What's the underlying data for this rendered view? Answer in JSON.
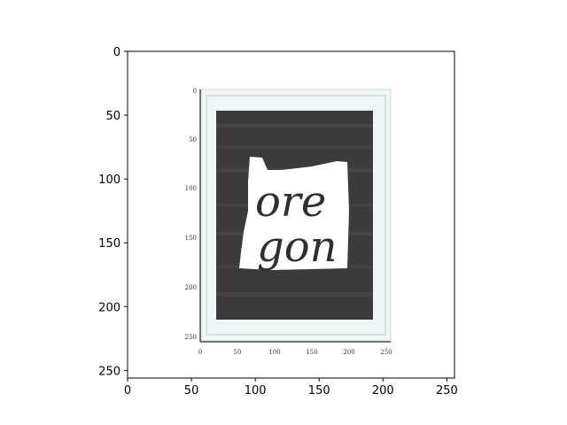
{
  "chart_data": {
    "type": "image",
    "title": "",
    "xlabel": "",
    "ylabel": "",
    "xlim": [
      0,
      256
    ],
    "ylim": [
      256,
      0
    ],
    "x_ticks": [
      "0",
      "50",
      "100",
      "150",
      "200",
      "250"
    ],
    "y_ticks": [
      "0",
      "50",
      "100",
      "150",
      "200",
      "250"
    ],
    "grid": false,
    "embedded_image": {
      "description_free": true,
      "inner_x_ticks": [
        "0",
        "50",
        "100",
        "150",
        "200",
        "250"
      ],
      "inner_y_ticks": [
        "0",
        "50",
        "100",
        "150",
        "200",
        "250"
      ],
      "artwork_text": [
        "ore",
        "gon"
      ]
    }
  },
  "colors": {
    "axis": "#000000",
    "frame_mat": "#eef6f8",
    "frame_line": "#cfd8da",
    "board": "#3b3b3b",
    "board_stripe": "#4a4a4a",
    "state_fill": "#ffffff",
    "ink": "#2f2f2f"
  }
}
